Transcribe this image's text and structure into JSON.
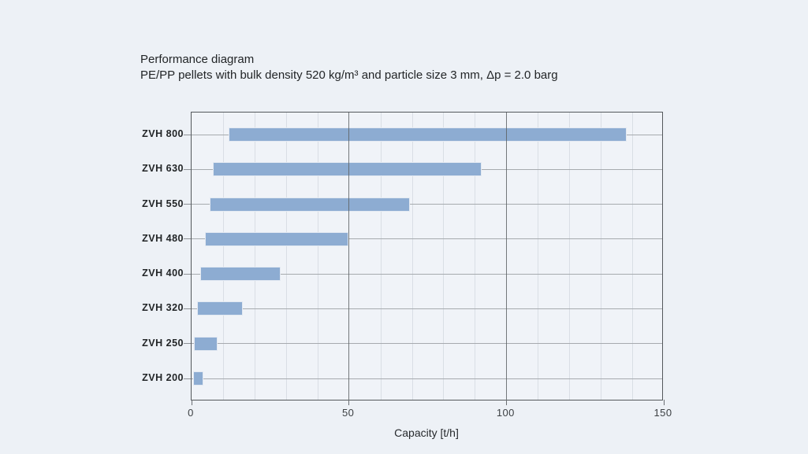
{
  "page": {
    "background": "#edf1f6"
  },
  "header": {
    "title": "Performance diagram",
    "subtitle": "PE/PP pellets with bulk density 520 kg/m³ and particle size 3 mm, Δp = 2.0 barg"
  },
  "chart_data": {
    "type": "bar",
    "orientation": "horizontal",
    "title": "Performance diagram",
    "subtitle": "PE/PP pellets with bulk density 520 kg/m³ and particle size 3 mm, Δp = 2.0 barg",
    "xlabel": "Capacity [t/h]",
    "xlim": [
      0,
      150
    ],
    "x_major_ticks": [
      0,
      50,
      100,
      150
    ],
    "x_minor_step": 10,
    "grid": true,
    "legend": "none",
    "bar_color": "#8dacd2",
    "categories": [
      "ZVH 800",
      "ZVH 630",
      "ZVH 550",
      "ZVH 480",
      "ZVH 400",
      "ZVH 320",
      "ZVH 250",
      "ZVH 200"
    ],
    "bars": [
      {
        "label": "ZVH 800",
        "start": 12,
        "end": 138
      },
      {
        "label": "ZVH 630",
        "start": 7,
        "end": 92
      },
      {
        "label": "ZVH 550",
        "start": 6,
        "end": 69
      },
      {
        "label": "ZVH 480",
        "start": 4.5,
        "end": 49.5
      },
      {
        "label": "ZVH 400",
        "start": 3,
        "end": 28
      },
      {
        "label": "ZVH 320",
        "start": 2,
        "end": 16
      },
      {
        "label": "ZVH 250",
        "start": 1,
        "end": 8
      },
      {
        "label": "ZVH 200",
        "start": 0.8,
        "end": 3.6
      }
    ]
  }
}
